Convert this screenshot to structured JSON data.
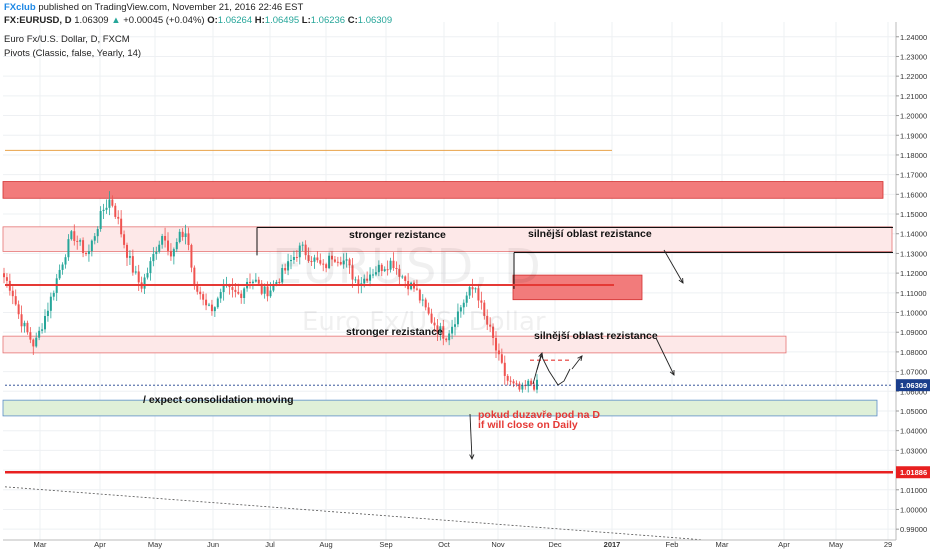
{
  "header": {
    "brand": "FXclub",
    "published": "published on TradingView.com, November 21, 2016 22:46 EST",
    "symbol": "FX:EURUSD, D",
    "last": "1.06309",
    "change": "+0.00045 (+0.04%)",
    "o_label": "O:",
    "o": "1.06264",
    "h_label": "H:",
    "h": "1.06495",
    "l_label": "L:",
    "l": "1.06236",
    "c_label": "C:",
    "c": "1.06309",
    "instrument": "Euro Fx/U.S. Dollar, D, FXCM",
    "indicator": "Pivots (Classic, false, Yearly, 14)"
  },
  "watermark": {
    "symbol": "EURUSD, D",
    "name": "Euro Fx/U.S. Dollar"
  },
  "colors": {
    "up": "#26a69a",
    "down": "#ef5350",
    "resistance": "#e53935",
    "zone_fill": "#fde8e8",
    "zone_strong": "#f27b7b",
    "support_fill": "#dff0d8",
    "pivot_orange": "#e8a24a",
    "price_line": "#1a3e8c"
  },
  "chart_data": {
    "type": "candlestick",
    "xaxis_labels": [
      "Mar",
      "Apr",
      "May",
      "Jun",
      "Jul",
      "Aug",
      "Sep",
      "Oct",
      "Nov",
      "Dec",
      "2017",
      "Feb",
      "Mar",
      "Apr",
      "May",
      "29"
    ],
    "ylim": [
      0.9845,
      1.2475
    ],
    "yticks": [
      "1.24000",
      "1.23000",
      "1.22000",
      "1.21000",
      "1.20000",
      "1.19000",
      "1.18000",
      "1.17000",
      "1.16000",
      "1.15000",
      "1.14000",
      "1.13000",
      "1.12000",
      "1.11000",
      "1.10000",
      "1.09000",
      "1.08000",
      "1.07000",
      "1.06000",
      "1.05000",
      "1.04000",
      "1.03000",
      "1.02000",
      "1.01000",
      "1.00000",
      "0.99000"
    ],
    "last_price_label": "1.06309",
    "level_label": "1.01886",
    "grid": true,
    "annotations": [
      "stronger rezistance",
      "silnější oblast rezistance",
      "stronger rezistance",
      "silnější oblast rezistance",
      "/ expect consolidation moving",
      "pokud duzavře pod na D",
      "if will close on Daily"
    ],
    "candles_anchor_closes": [
      1.118,
      1.112,
      1.098,
      1.09,
      1.083,
      1.094,
      1.105,
      1.118,
      1.13,
      1.14,
      1.134,
      1.129,
      1.141,
      1.152,
      1.158,
      1.146,
      1.132,
      1.121,
      1.113,
      1.122,
      1.133,
      1.141,
      1.128,
      1.138,
      1.141,
      1.112,
      1.109,
      1.102,
      1.105,
      1.112,
      1.11,
      1.109,
      1.117,
      1.116,
      1.11,
      1.112,
      1.117,
      1.122,
      1.128,
      1.133,
      1.129,
      1.126,
      1.122,
      1.129,
      1.128,
      1.125,
      1.117,
      1.116,
      1.12,
      1.122,
      1.124,
      1.126,
      1.12,
      1.115,
      1.112,
      1.104,
      1.097,
      1.092,
      1.088,
      1.095,
      1.103,
      1.11,
      1.113,
      1.098,
      1.089,
      1.076,
      1.066,
      1.062,
      1.06,
      1.064,
      1.063
    ]
  }
}
